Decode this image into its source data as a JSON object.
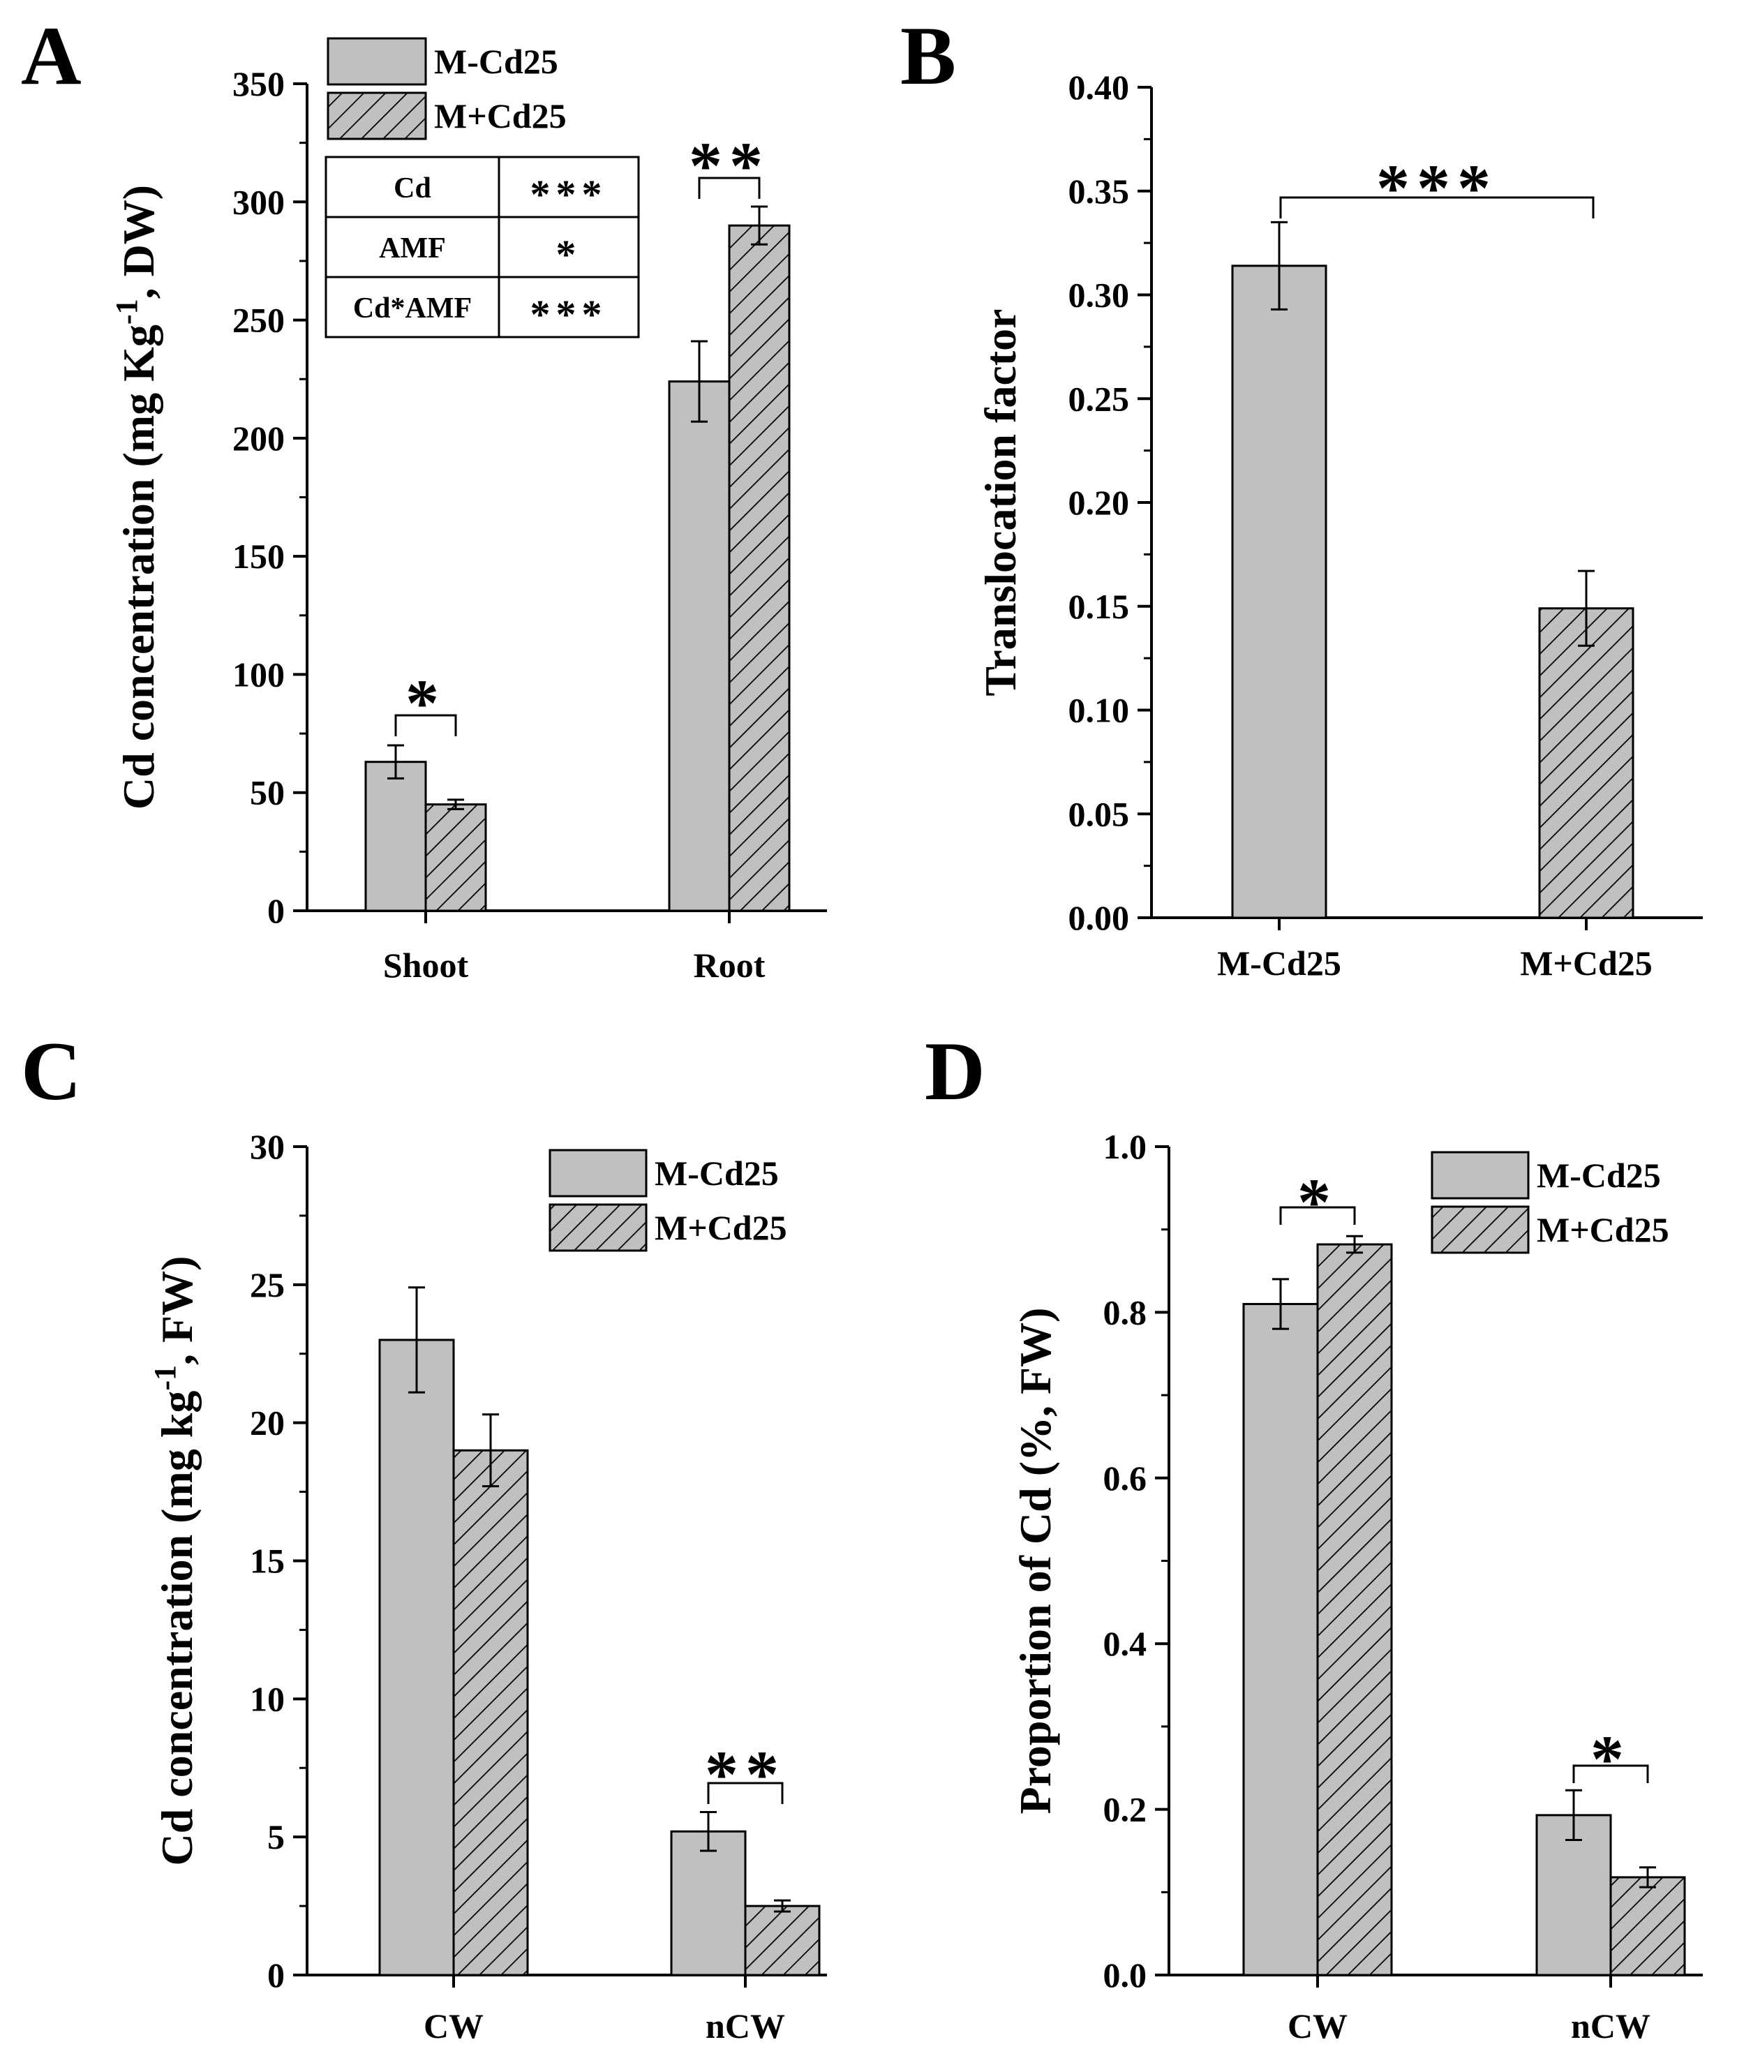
{
  "chart_data": [
    {
      "id": "A",
      "type": "bar",
      "panel_label": "A",
      "ylabel_parts": [
        "Cd concentration (mg Kg",
        "-1",
        ", DW)"
      ],
      "ylim": [
        0,
        350
      ],
      "yticks": [
        0,
        50,
        100,
        150,
        200,
        250,
        300,
        350
      ],
      "ytick_labels": [
        "0",
        "50",
        "100",
        "150",
        "200",
        "250",
        "300",
        "350"
      ],
      "categories": [
        "Shoot",
        "Root"
      ],
      "series": [
        {
          "name": "M-Cd25",
          "pattern": "solid",
          "values": [
            63,
            224
          ],
          "errors": [
            7,
            17
          ]
        },
        {
          "name": "M+Cd25",
          "pattern": "hatch",
          "values": [
            45,
            290
          ],
          "errors": [
            2,
            8
          ]
        }
      ],
      "significance": [
        {
          "category": "Shoot",
          "label": "*"
        },
        {
          "category": "Root",
          "label": "**"
        }
      ],
      "legend_position": "top-left",
      "anova_table": [
        {
          "factor": "Cd",
          "sig": "***"
        },
        {
          "factor": "AMF",
          "sig": "*"
        },
        {
          "factor": "Cd*AMF",
          "sig": "***"
        }
      ]
    },
    {
      "id": "B",
      "type": "bar",
      "panel_label": "B",
      "ylabel_parts": [
        "Translocation factor"
      ],
      "ylim": [
        0,
        0.4
      ],
      "yticks": [
        0,
        0.05,
        0.1,
        0.15,
        0.2,
        0.25,
        0.3,
        0.35,
        0.4
      ],
      "ytick_labels": [
        "0.00",
        "0.05",
        "0.10",
        "0.15",
        "0.20",
        "0.25",
        "0.30",
        "0.35",
        "0.40"
      ],
      "categories": [
        "M-Cd25",
        "M+Cd25"
      ],
      "series": [
        {
          "pattern": "solid",
          "values": [
            0.314,
            null
          ],
          "errors": [
            0.021,
            null
          ]
        },
        {
          "pattern": "hatch",
          "values": [
            null,
            0.149
          ],
          "errors": [
            null,
            0.018
          ]
        }
      ],
      "significance": [
        {
          "between": [
            "M-Cd25",
            "M+Cd25"
          ],
          "label": "***"
        }
      ]
    },
    {
      "id": "C",
      "type": "bar",
      "panel_label": "C",
      "ylabel_parts": [
        "Cd concentration (mg kg",
        "-1",
        ", FW)"
      ],
      "ylim": [
        0,
        30
      ],
      "yticks": [
        0,
        5,
        10,
        15,
        20,
        25,
        30
      ],
      "ytick_labels": [
        "0",
        "5",
        "10",
        "15",
        "20",
        "25",
        "30"
      ],
      "categories": [
        "CW",
        "nCW"
      ],
      "series": [
        {
          "name": "M-Cd25",
          "pattern": "solid",
          "values": [
            23.0,
            5.2
          ],
          "errors": [
            1.9,
            0.7
          ]
        },
        {
          "name": "M+Cd25",
          "pattern": "hatch",
          "values": [
            19.0,
            2.5
          ],
          "errors": [
            1.3,
            0.2
          ]
        }
      ],
      "significance": [
        {
          "category": "nCW",
          "label": "**"
        }
      ],
      "legend_position": "top-right"
    },
    {
      "id": "D",
      "type": "bar",
      "panel_label": "D",
      "ylabel_parts": [
        "Proportion of Cd (%, FW)"
      ],
      "ylim": [
        0,
        1.0
      ],
      "yticks": [
        0,
        0.2,
        0.4,
        0.6,
        0.8,
        1.0
      ],
      "ytick_labels": [
        "0.0",
        "0.2",
        "0.4",
        "0.6",
        "0.8",
        "1.0"
      ],
      "categories": [
        "CW",
        "nCW"
      ],
      "series": [
        {
          "name": "M-Cd25",
          "pattern": "solid",
          "values": [
            0.81,
            0.193
          ],
          "errors": [
            0.03,
            0.03
          ]
        },
        {
          "name": "M+Cd25",
          "pattern": "hatch",
          "values": [
            0.882,
            0.118
          ],
          "errors": [
            0.01,
            0.012
          ]
        }
      ],
      "significance": [
        {
          "category": "CW",
          "label": "*"
        },
        {
          "category": "nCW",
          "label": "*"
        }
      ],
      "legend_position": "top-right"
    }
  ],
  "colors": {
    "bar_fill": "#c0c0c0",
    "hatch_line": "#000000",
    "axis": "#000000",
    "background": "#ffffff"
  }
}
